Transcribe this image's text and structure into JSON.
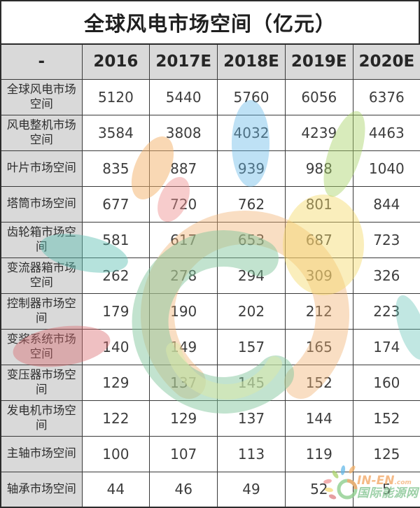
{
  "chart_data": {
    "type": "table",
    "title": "全球风电市场空间（亿元）",
    "unit": "亿元",
    "columns": [
      "-",
      "2016",
      "2017E",
      "2018E",
      "2019E",
      "2020E"
    ],
    "rows": [
      {
        "label": "全球风电市场空间",
        "values": [
          "5120",
          "5440",
          "5760",
          "6056",
          "6376"
        ]
      },
      {
        "label": "风电整机市场空间",
        "values": [
          "3584",
          "3808",
          "4032",
          "4239",
          "4463"
        ]
      },
      {
        "label": "叶片市场空间",
        "values": [
          "835",
          "887",
          "939",
          "988",
          "1040"
        ]
      },
      {
        "label": "塔筒市场空间",
        "values": [
          "677",
          "720",
          "762",
          "801",
          "844"
        ]
      },
      {
        "label": "齿轮箱市场空间",
        "values": [
          "581",
          "617",
          "653",
          "687",
          "723"
        ]
      },
      {
        "label": "变流器箱市场空间",
        "values": [
          "262",
          "278",
          "294",
          "309",
          "326"
        ]
      },
      {
        "label": "控制器市场空间",
        "values": [
          "179",
          "190",
          "202",
          "212",
          "223"
        ]
      },
      {
        "label": "变桨系统市场空间",
        "values": [
          "140",
          "149",
          "157",
          "165",
          "174"
        ]
      },
      {
        "label": "变压器市场空间",
        "values": [
          "129",
          "137",
          "145",
          "152",
          "160"
        ]
      },
      {
        "label": "发电机市场空间",
        "values": [
          "122",
          "129",
          "137",
          "144",
          "152"
        ]
      },
      {
        "label": "主轴市场空间",
        "values": [
          "100",
          "107",
          "113",
          "119",
          "125"
        ]
      },
      {
        "label": "轴承市场空间",
        "values": [
          "44",
          "46",
          "49",
          "52",
          "5"
        ]
      }
    ],
    "layout": {
      "header_bg": "#d9d9d9",
      "label_col_bg": "#d9d9d9",
      "grid": "on",
      "border_color": "#2b2b2b"
    }
  },
  "watermark": {
    "brand_en": "IN-EN",
    "brand_suffix": ".com",
    "brand_cn": "国际能源网",
    "colors": {
      "swirl_green": "#7fc49a",
      "swirl_orange": "#f0b070",
      "swirl_yellow": "#f5d96b",
      "inner_yellow_green": "#dce9a8",
      "leaf_blue": "#64b8e8",
      "leaf_green": "#a8d268",
      "leaf_teal": "#5bbfb2",
      "leaf_red": "#d96a6e",
      "leaf_orange": "#f4b26a",
      "leaf_pink": "#ee8f8f",
      "ring_green": "#8fce8f",
      "ring_orange": "#f2a96e"
    }
  }
}
